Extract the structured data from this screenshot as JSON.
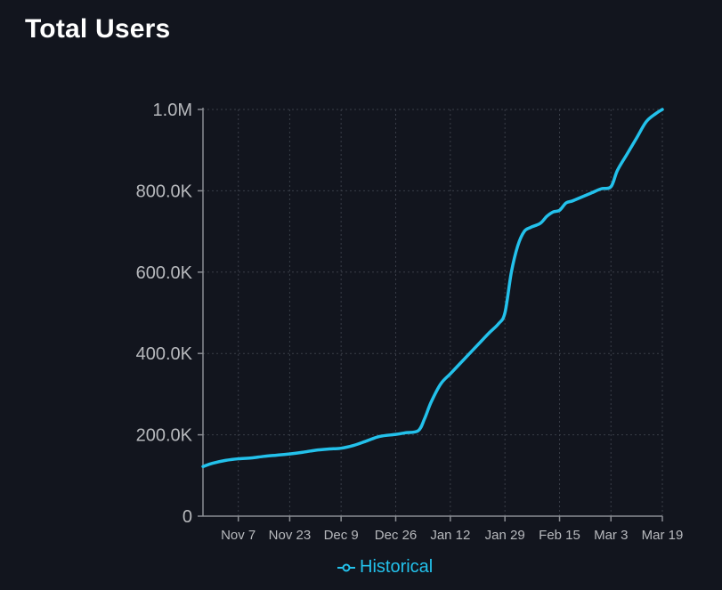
{
  "title": "Total Users",
  "colors": {
    "background": "#12151e",
    "series": "#23c1eb",
    "axis": "#8a8d93",
    "grid": "#3a3e48",
    "tick_text": "#b7b9bd"
  },
  "chart_data": {
    "type": "line",
    "title": "Total Users",
    "xlabel": "",
    "ylabel": "",
    "x_tick_labels": [
      "Nov 7",
      "Nov 23",
      "Dec 9",
      "Dec 26",
      "Jan 12",
      "Jan 29",
      "Feb 15",
      "Mar 3",
      "Mar 19"
    ],
    "y_tick_labels": [
      "0",
      "200.0K",
      "400.0K",
      "600.0K",
      "800.0K",
      "1.0M"
    ],
    "y_ticks": [
      0,
      200000,
      400000,
      600000,
      800000,
      1000000
    ],
    "ylim": [
      0,
      1000000
    ],
    "xlim": [
      "Oct 27",
      "Mar 19"
    ],
    "grid": true,
    "legend_position": "bottom-center",
    "series": [
      {
        "name": "Historical",
        "x": [
          "Oct 27",
          "Oct 30",
          "Nov 3",
          "Nov 7",
          "Nov 11",
          "Nov 15",
          "Nov 19",
          "Nov 23",
          "Nov 27",
          "Dec 1",
          "Dec 5",
          "Dec 9",
          "Dec 13",
          "Dec 17",
          "Dec 21",
          "Dec 26",
          "Dec 29",
          "Jan 2",
          "Jan 4",
          "Jan 6",
          "Jan 9",
          "Jan 12",
          "Jan 15",
          "Jan 18",
          "Jan 21",
          "Jan 24",
          "Jan 27",
          "Jan 29",
          "Jan 31",
          "Feb 2",
          "Feb 4",
          "Feb 6",
          "Feb 9",
          "Feb 11",
          "Feb 13",
          "Feb 15",
          "Feb 17",
          "Feb 19",
          "Feb 22",
          "Feb 25",
          "Feb 28",
          "Mar 3",
          "Mar 5",
          "Mar 8",
          "Mar 11",
          "Mar 14",
          "Mar 17",
          "Mar 19"
        ],
        "values": [
          122000,
          130000,
          137000,
          141000,
          143000,
          147000,
          150000,
          153000,
          157000,
          162000,
          165000,
          167000,
          174000,
          185000,
          196000,
          201000,
          205000,
          210000,
          240000,
          280000,
          325000,
          350000,
          375000,
          400000,
          425000,
          450000,
          473000,
          500000,
          600000,
          665000,
          700000,
          710000,
          720000,
          737000,
          748000,
          752000,
          770000,
          775000,
          785000,
          795000,
          805000,
          810000,
          850000,
          890000,
          930000,
          970000,
          990000,
          1000000
        ]
      }
    ]
  }
}
